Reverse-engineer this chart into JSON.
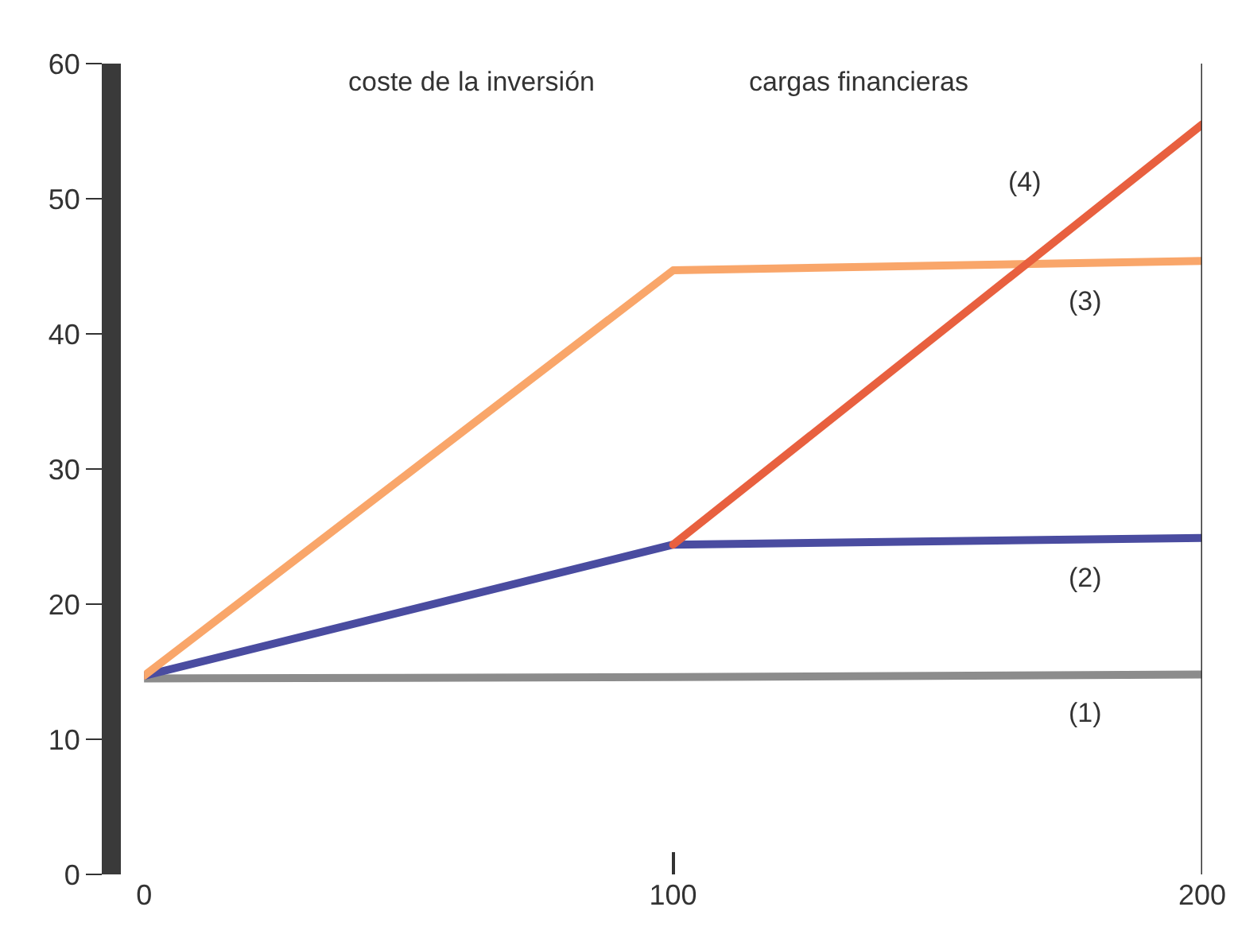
{
  "chart_data": {
    "type": "line",
    "x": [
      0,
      100,
      200
    ],
    "series": [
      {
        "name": "(1)",
        "color": "#8c8c8c",
        "values": [
          14.5,
          14.6,
          14.8
        ]
      },
      {
        "name": "(2)",
        "color": "#4a4ca0",
        "values": [
          14.7,
          24.4,
          24.9
        ]
      },
      {
        "name": "(3)",
        "color": "#f9a66a",
        "values": [
          14.7,
          44.7,
          45.4
        ]
      },
      {
        "name": "(4)",
        "color": "#e8603f",
        "values": [
          null,
          24.4,
          55.5
        ]
      }
    ],
    "xlim": [
      0,
      200
    ],
    "xticks": [
      0,
      100,
      200
    ],
    "ylim": [
      0,
      60
    ],
    "yticks": [
      0,
      10,
      20,
      30,
      40,
      50,
      60
    ],
    "grid": false,
    "legend": false,
    "marker": "none",
    "line_style": "solid",
    "ref_lines": [
      {
        "axis": "x",
        "value": 200,
        "color": "#333333"
      }
    ],
    "annotations": [
      "coste de la inversión",
      "cargas financieras"
    ]
  }
}
